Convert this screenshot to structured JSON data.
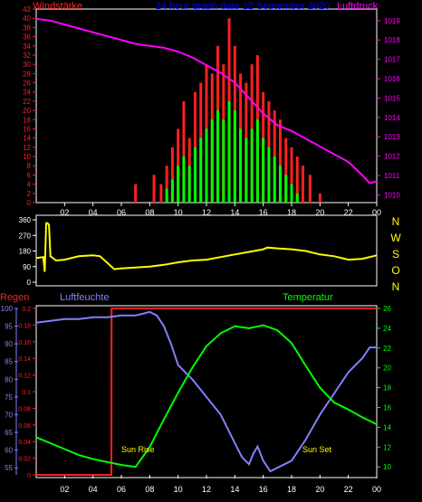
{
  "top_panel": {
    "title": "24 hour graph date 12 September 2020",
    "left_label": "Windstärke",
    "right_label": "Luftdruck",
    "wind_ticks": [
      "0",
      "2",
      "4",
      "6",
      "8",
      "10",
      "12",
      "14",
      "16",
      "18",
      "20",
      "22",
      "24",
      "26",
      "28",
      "30",
      "32",
      "34",
      "36",
      "38",
      "40",
      "42"
    ],
    "pressure_ticks": [
      "1010",
      "1011",
      "1012",
      "1013",
      "1014",
      "1015",
      "1016",
      "1017",
      "1018",
      "1019"
    ],
    "x_ticks": [
      "02",
      "04",
      "06",
      "08",
      "10",
      "12",
      "14",
      "16",
      "18",
      "20",
      "22",
      "00"
    ]
  },
  "middle_panel": {
    "dir_ticks": [
      "0",
      "90",
      "180",
      "270",
      "360"
    ],
    "compass_labels": [
      "N",
      "W",
      "S",
      "O",
      "N"
    ]
  },
  "bottom_panel": {
    "rain_label": "Regen",
    "humidity_label": "Luftfeuchte",
    "temperature_label": "Temperatur",
    "humidity_ticks": [
      "55",
      "60",
      "65",
      "70",
      "75",
      "80",
      "85",
      "90",
      "95",
      "100"
    ],
    "rain_ticks": [
      "0",
      "0.02",
      "0.04",
      "0.06",
      "0.08",
      "0.1",
      "0.12",
      "0.14",
      "0.16",
      "0.18",
      "0.2"
    ],
    "temp_ticks": [
      "10",
      "12",
      "14",
      "16",
      "18",
      "20",
      "22",
      "24",
      "26"
    ],
    "sun_rise": "Sun Rise",
    "sun_set": "Sun Set",
    "x_ticks": [
      "02",
      "04",
      "06",
      "08",
      "10",
      "12",
      "14",
      "16",
      "18",
      "20",
      "22",
      "00"
    ]
  },
  "colors": {
    "wind_gust": "#ff2020",
    "wind_avg": "#00ff00",
    "pressure": "#ff00ff",
    "direction": "#ffff00",
    "rain": "#ff2020",
    "humidity": "#8080ff",
    "temperature": "#00ff00",
    "title": "#0000ff",
    "compass": "#ffff00"
  },
  "chart_data": [
    {
      "type": "line",
      "panel": "wind-pressure",
      "x_unit": "hour",
      "xlim": [
        0,
        24
      ],
      "ylim_wind": [
        0,
        42
      ],
      "ylim_pressure": [
        1009.6,
        1019.6
      ],
      "pressure": {
        "x": [
          0,
          1,
          2,
          3,
          4,
          5,
          6,
          7,
          8,
          9,
          10,
          11,
          12,
          13,
          14,
          15,
          16,
          17,
          18,
          19,
          20,
          21,
          22,
          23,
          23.5,
          24
        ],
        "values": [
          1019.1,
          1019.0,
          1018.8,
          1018.6,
          1018.4,
          1018.2,
          1018.0,
          1017.8,
          1017.7,
          1017.6,
          1017.4,
          1017.1,
          1016.7,
          1016.3,
          1015.8,
          1015.0,
          1014.2,
          1013.6,
          1013.3,
          1012.9,
          1012.5,
          1012.1,
          1011.7,
          1011.0,
          1010.6,
          1010.7
        ]
      },
      "wind_gust": {
        "x": [
          7.0,
          8.3,
          8.8,
          9.2,
          9.6,
          10.0,
          10.4,
          10.8,
          11.2,
          11.6,
          12.0,
          12.4,
          12.8,
          13.2,
          13.6,
          14.0,
          14.4,
          14.8,
          15.2,
          15.6,
          16.0,
          16.4,
          16.8,
          17.2,
          17.6,
          18.0,
          18.4,
          18.8,
          19.3,
          20.0
        ],
        "values": [
          4,
          6,
          4,
          8,
          12,
          16,
          22,
          14,
          24,
          26,
          30,
          28,
          34,
          30,
          40,
          34,
          28,
          26,
          30,
          32,
          24,
          22,
          20,
          18,
          14,
          12,
          10,
          8,
          6,
          2
        ]
      },
      "wind_avg": {
        "x": [
          9.2,
          9.6,
          10.0,
          10.4,
          10.8,
          11.2,
          11.6,
          12.0,
          12.4,
          12.8,
          13.2,
          13.6,
          14.0,
          14.4,
          14.8,
          15.2,
          15.6,
          16.0,
          16.4,
          16.8,
          17.2,
          17.6,
          18.0,
          18.4
        ],
        "values": [
          3,
          5,
          8,
          10,
          8,
          12,
          14,
          16,
          18,
          20,
          18,
          22,
          20,
          16,
          14,
          16,
          18,
          14,
          12,
          10,
          8,
          6,
          4,
          2
        ]
      }
    },
    {
      "type": "line",
      "panel": "wind-direction",
      "x_unit": "hour",
      "xlim": [
        0,
        24
      ],
      "ylim": [
        0,
        360
      ],
      "series": [
        {
          "x": [
            0,
            0.5,
            0.6,
            0.7,
            0.8,
            0.9,
            1.0,
            1.4,
            2.0,
            3.0,
            4.0,
            4.5,
            5.5,
            6.0,
            7.0,
            8.0,
            9.0,
            10.0,
            10.5,
            11.0,
            12.0,
            13.0,
            14.0,
            15.0,
            16.0,
            16.3,
            17.0,
            18.0,
            19.0,
            20.0,
            21.0,
            22.0,
            23.0,
            24.0
          ],
          "values": [
            140,
            145,
            60,
            340,
            340,
            330,
            150,
            125,
            130,
            150,
            155,
            150,
            75,
            80,
            85,
            90,
            100,
            115,
            120,
            125,
            130,
            145,
            160,
            175,
            190,
            200,
            195,
            190,
            180,
            160,
            150,
            130,
            135,
            155
          ]
        }
      ]
    },
    {
      "type": "line",
      "panel": "humidity-rain-temperature",
      "x_unit": "hour",
      "xlim": [
        0,
        24
      ],
      "ylim_humidity": [
        53,
        100
      ],
      "ylim_rain": [
        0,
        0.2
      ],
      "ylim_temp": [
        9.2,
        26
      ],
      "humidity": {
        "x": [
          0,
          1,
          2,
          3,
          4,
          5,
          6,
          7,
          8,
          8.5,
          9,
          9.5,
          10,
          11,
          12,
          13,
          14,
          14.5,
          15,
          15.3,
          15.6,
          16,
          16.5,
          17,
          18,
          19,
          20,
          21,
          22,
          23,
          23.5,
          24
        ],
        "values": [
          96,
          96.5,
          97,
          97,
          97.5,
          97.5,
          98,
          98,
          99,
          98,
          95,
          90,
          84,
          80,
          75,
          70,
          62,
          58,
          56,
          59,
          61,
          57,
          54,
          55,
          57,
          63,
          70,
          76,
          82,
          86,
          89,
          89
        ]
      },
      "rain": {
        "x": [
          0,
          5.3,
          5.31,
          24
        ],
        "values": [
          0,
          0,
          0.2,
          0.2
        ]
      },
      "temperature": {
        "x": [
          0,
          1,
          2,
          3,
          4,
          5,
          6,
          7,
          8,
          9,
          10,
          11,
          12,
          13,
          14,
          15,
          16,
          17,
          18,
          19,
          20,
          21,
          22,
          23,
          24
        ],
        "values": [
          13.0,
          12.4,
          11.8,
          11.2,
          10.8,
          10.5,
          10.2,
          10.0,
          12.0,
          14.8,
          17.5,
          20.0,
          22.2,
          23.5,
          24.2,
          24.0,
          24.3,
          23.8,
          22.5,
          20.2,
          18.0,
          16.5,
          15.8,
          15.0,
          14.3
        ]
      },
      "annotations": [
        "Sun Rise",
        "Sun Set"
      ]
    }
  ]
}
